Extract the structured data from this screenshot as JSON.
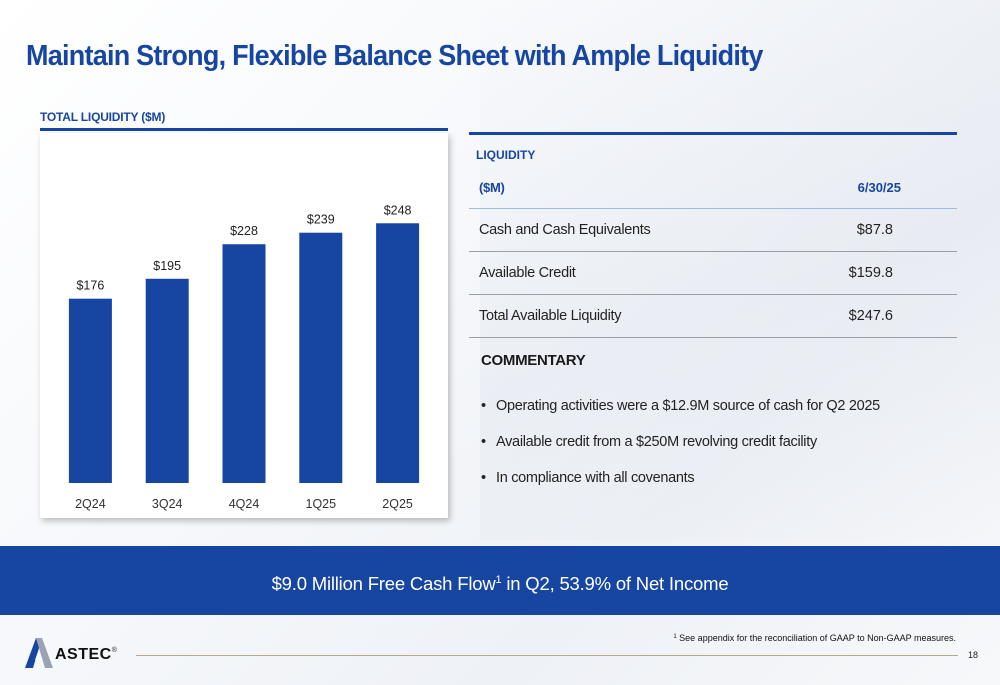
{
  "title": "Maintain Strong, Flexible Balance Sheet with Ample Liquidity",
  "chart_heading": "TOTAL LIQUIDITY ($M)",
  "chart_data": {
    "type": "bar",
    "categories": [
      "2Q24",
      "3Q24",
      "4Q24",
      "1Q25",
      "2Q25"
    ],
    "values": [
      176,
      195,
      228,
      239,
      248
    ],
    "value_labels": [
      "$176",
      "$195",
      "$228",
      "$239",
      "$248"
    ],
    "title": "TOTAL LIQUIDITY ($M)",
    "ylim": [
      0,
      275
    ],
    "grid": false,
    "color": "#1746a2"
  },
  "liquidity_table": {
    "heading": "LIQUIDITY",
    "header": {
      "label": "($M)",
      "date": "6/30/25"
    },
    "rows": [
      {
        "label": "Cash and Cash Equivalents",
        "value": "$87.8"
      },
      {
        "label": "Available Credit",
        "value": "$159.8"
      },
      {
        "label": "Total Available Liquidity",
        "value": "$247.6"
      }
    ]
  },
  "commentary": {
    "heading": "COMMENTARY",
    "bullets": [
      "Operating activities were a $12.9M source of cash for Q2 2025",
      "Available credit from a $250M revolving credit facility",
      "In compliance with all covenants"
    ]
  },
  "banner": {
    "text_before": "$9.0 Million Free Cash Flow",
    "superscript": "1",
    "text_after": " in Q2, 53.9% of Net Income"
  },
  "footnote": {
    "marker": "1",
    "text": " See appendix for the reconciliation of GAAP to Non-GAAP measures."
  },
  "logo": {
    "text": "ASTEC",
    "mark": "®"
  },
  "page_number": "18",
  "colors": {
    "brand_blue": "#1746a2",
    "accent_gold": "#c9a25a"
  }
}
